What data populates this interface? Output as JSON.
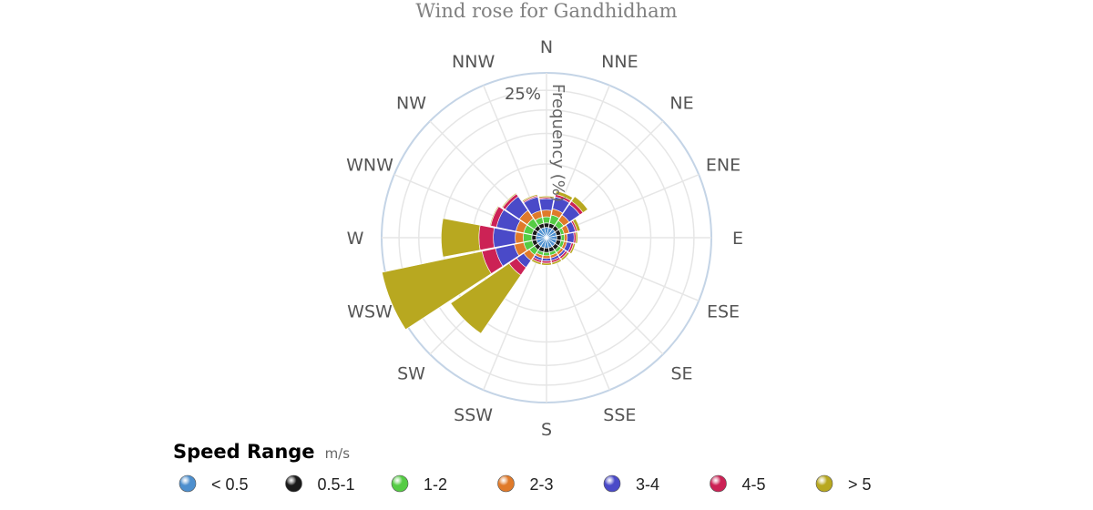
{
  "chart_data": {
    "type": "wind-rose",
    "title": "Wind rose for Gandhidham",
    "radial_axis": {
      "title": "Frequency (%)",
      "max": 25,
      "ticks": [
        25
      ],
      "tick_labels": [
        "25%"
      ],
      "grid_rings": 5
    },
    "directions": [
      "N",
      "NNE",
      "NE",
      "ENE",
      "E",
      "ESE",
      "SE",
      "SSE",
      "S",
      "SSW",
      "SW",
      "WSW",
      "W",
      "WNW",
      "NW",
      "NNW"
    ],
    "legend": {
      "title": "Speed Range",
      "unit": "m/s",
      "placement": "bottom-left"
    },
    "series": [
      {
        "name": "< 0.5",
        "color": "#4d8fce",
        "values": [
          0.1,
          0.1,
          0.1,
          0.1,
          0.1,
          0.1,
          0.1,
          0.1,
          0.1,
          0.1,
          0.1,
          0.1,
          0.1,
          0.1,
          0.1,
          0.1
        ]
      },
      {
        "name": "0.5-1",
        "color": "#1a1a1a",
        "values": [
          0.1,
          0.1,
          0.1,
          0.1,
          0.1,
          0.1,
          0.1,
          0.1,
          0.1,
          0.1,
          0.1,
          0.1,
          0.1,
          0.1,
          0.1,
          0.1
        ]
      },
      {
        "name": "1-2",
        "color": "#55cc44",
        "values": [
          0.2,
          0.3,
          0.2,
          0.1,
          0.1,
          0.1,
          0.1,
          0.1,
          0.1,
          0.1,
          0.2,
          0.3,
          0.3,
          0.3,
          0.3,
          0.2
        ]
      },
      {
        "name": "2-3",
        "color": "#e07a2a",
        "values": [
          0.3,
          0.3,
          0.3,
          0.2,
          0.1,
          0.1,
          0.1,
          0.1,
          0.1,
          0.1,
          0.3,
          0.5,
          0.4,
          0.4,
          0.5,
          0.3
        ]
      },
      {
        "name": "3-4",
        "color": "#4a4ac8",
        "values": [
          0.7,
          0.8,
          0.8,
          0.3,
          0.3,
          0.2,
          0.1,
          0.1,
          0.1,
          0.1,
          0.5,
          1.5,
          1.7,
          1.5,
          1.3,
          0.9
        ]
      },
      {
        "name": "4-5",
        "color": "#cc2255",
        "values": [
          0.1,
          0.2,
          0.3,
          0.1,
          0.1,
          0.1,
          0.1,
          0.1,
          0.1,
          0.1,
          0.7,
          1.5,
          1.6,
          0.6,
          0.3,
          0.1
        ]
      },
      {
        "name": "> 5",
        "color": "#b8a820",
        "values": [
          0.1,
          0.3,
          0.5,
          0.2,
          0.1,
          0.1,
          0.1,
          0.1,
          0.1,
          0.1,
          10.5,
          22.0,
          6.0,
          0.1,
          0.1,
          0.1
        ]
      }
    ]
  }
}
